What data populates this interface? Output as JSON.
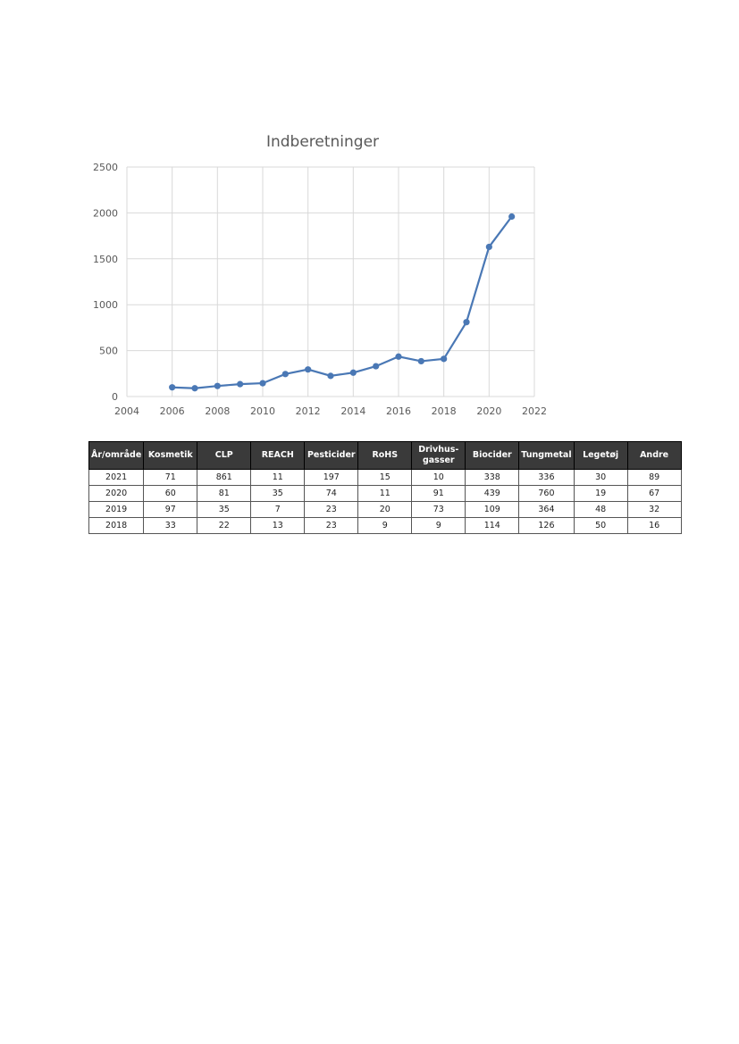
{
  "chart_data": {
    "type": "line",
    "title": "Indberetninger",
    "xlabel": "",
    "ylabel": "",
    "xlim": [
      2004,
      2022
    ],
    "ylim": [
      0,
      2500
    ],
    "x_ticks": [
      "2004",
      "2006",
      "2008",
      "2010",
      "2012",
      "2014",
      "2016",
      "2018",
      "2020",
      "2022"
    ],
    "y_ticks": [
      "0",
      "500",
      "1000",
      "1500",
      "2000",
      "2500"
    ],
    "grid": true,
    "legend": "none",
    "color": "#4a78b5",
    "series": [
      {
        "x": [
          2006,
          2007,
          2008,
          2009,
          2010,
          2011,
          2012,
          2013,
          2014,
          2015,
          2016,
          2017,
          2018,
          2019,
          2020,
          2021
        ],
        "values": [
          100,
          90,
          115,
          135,
          145,
          245,
          295,
          225,
          260,
          330,
          435,
          385,
          410,
          810,
          1630,
          1960
        ]
      }
    ]
  },
  "table": {
    "headers": [
      "År/område",
      "Kosmetik",
      "CLP",
      "REACH",
      "Pesticider",
      "RoHS",
      [
        "Drivhus-",
        "gasser"
      ],
      "Biocider",
      "Tungmetal",
      "Legetøj",
      "Andre"
    ],
    "rows": [
      [
        "2021",
        "71",
        "861",
        "11",
        "197",
        "15",
        "10",
        "338",
        "336",
        "30",
        "89"
      ],
      [
        "2020",
        "60",
        "81",
        "35",
        "74",
        "11",
        "91",
        "439",
        "760",
        "19",
        "67"
      ],
      [
        "2019",
        "97",
        "35",
        "7",
        "23",
        "20",
        "73",
        "109",
        "364",
        "48",
        "32"
      ],
      [
        "2018",
        "33",
        "22",
        "13",
        "23",
        "9",
        "9",
        "114",
        "126",
        "50",
        "16"
      ]
    ]
  }
}
